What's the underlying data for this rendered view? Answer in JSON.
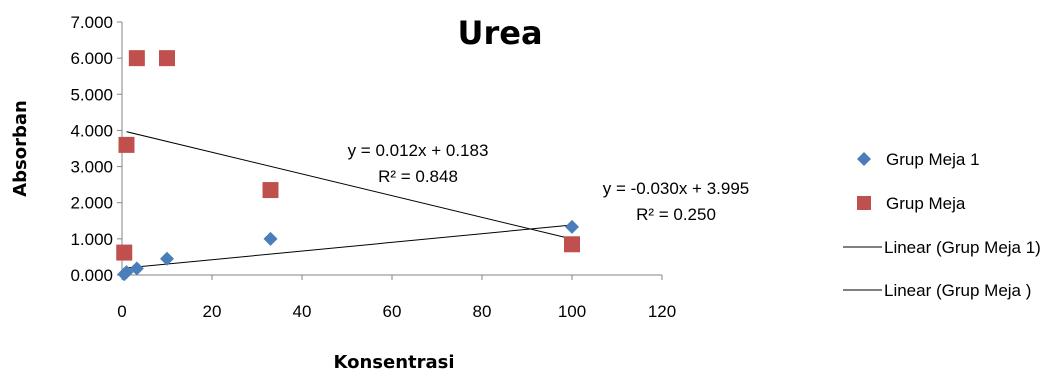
{
  "chart_data": {
    "type": "scatter",
    "title": "Urea",
    "xlabel": "Konsentrasi",
    "ylabel": "Absorban",
    "xlim": [
      0,
      120
    ],
    "ylim": [
      0,
      7
    ],
    "x_ticks": [
      "0",
      "20",
      "40",
      "60",
      "80",
      "100",
      "120"
    ],
    "y_ticks": [
      "0.000",
      "1.000",
      "2.000",
      "3.000",
      "4.000",
      "5.000",
      "6.000",
      "7.000"
    ],
    "grid": false,
    "legend_position": "right",
    "series": [
      {
        "name": "Grup Meja 1",
        "marker": "diamond",
        "color": "#4a7ebb",
        "x": [
          0.5,
          1,
          3.3,
          10,
          33,
          100
        ],
        "y": [
          0.02,
          0.08,
          0.18,
          0.45,
          1.0,
          1.33
        ]
      },
      {
        "name": "Grup Meja",
        "marker": "square",
        "color": "#c0504d",
        "x": [
          0.5,
          1,
          3.3,
          10,
          33,
          100
        ],
        "y": [
          0.62,
          3.6,
          6.0,
          6.0,
          2.35,
          0.85
        ]
      }
    ],
    "trendlines": [
      {
        "name": "Linear (Grup Meja 1)",
        "slope": 0.012,
        "intercept": 0.183,
        "x_range": [
          1,
          100
        ],
        "equation": "y = 0.012x + 0.183",
        "r2": "R² = 0.848"
      },
      {
        "name": "Linear (Grup Meja )",
        "slope": -0.03,
        "intercept": 3.995,
        "x_range": [
          1,
          100
        ],
        "equation": "y = -0.030x + 3.995",
        "r2": "R² = 0.250"
      }
    ]
  }
}
